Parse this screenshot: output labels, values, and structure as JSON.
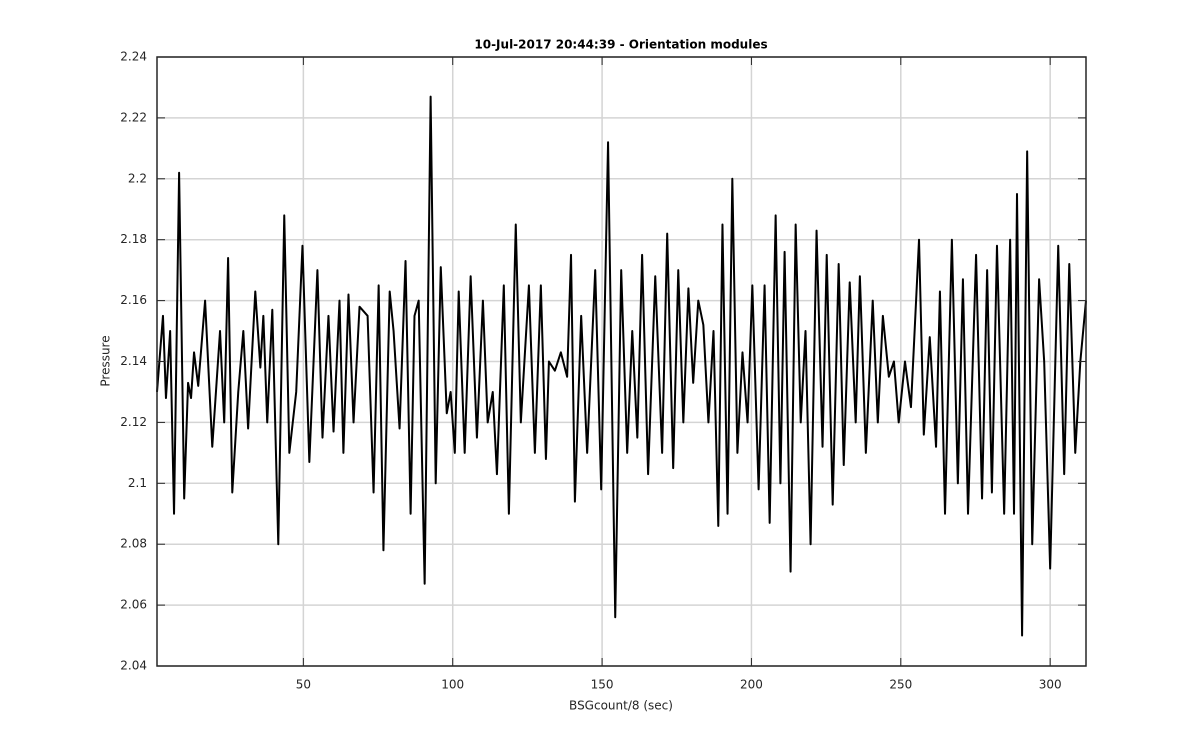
{
  "chart_data": {
    "type": "line",
    "title": "10-Jul-2017 20:44:39 - Orientation modules",
    "xlabel": "BSGcount/8 (sec)",
    "ylabel": "Pressure",
    "color": "#000000",
    "grid": true,
    "xlim": [
      1,
      312
    ],
    "xticks": [
      50,
      100,
      150,
      200,
      250,
      300
    ],
    "ylim": [
      2.04,
      2.24
    ],
    "yticks": [
      2.04,
      2.06,
      2.08,
      2.1,
      2.12,
      2.14,
      2.16,
      2.18,
      2.2,
      2.22,
      2.24
    ],
    "x": [
      1.0,
      3.0,
      4.0,
      5.4,
      6.7,
      8.4,
      10.1,
      11.4,
      12.4,
      13.4,
      14.8,
      17.1,
      19.5,
      22.1,
      23.5,
      24.8,
      26.2,
      28.2,
      29.9,
      31.5,
      33.9,
      35.6,
      36.6,
      37.9,
      39.6,
      41.6,
      43.6,
      45.3,
      47.6,
      49.7,
      52.0,
      54.7,
      56.4,
      58.4,
      60.1,
      62.1,
      63.4,
      65.1,
      66.8,
      68.8,
      71.5,
      73.5,
      75.2,
      76.8,
      78.9,
      80.2,
      82.2,
      84.2,
      85.9,
      87.2,
      88.6,
      90.6,
      92.6,
      94.3,
      96.0,
      98.0,
      99.3,
      100.7,
      102.0,
      104.0,
      106.0,
      108.1,
      110.1,
      111.7,
      113.4,
      114.8,
      117.1,
      118.8,
      121.1,
      122.8,
      125.5,
      127.5,
      129.5,
      131.2,
      132.2,
      134.2,
      136.2,
      138.3,
      139.6,
      140.9,
      143.0,
      145.0,
      147.7,
      149.7,
      152.0,
      154.4,
      156.4,
      158.4,
      160.1,
      161.8,
      163.4,
      165.4,
      167.8,
      170.1,
      171.8,
      173.8,
      175.5,
      177.2,
      178.9,
      180.5,
      182.2,
      183.9,
      185.6,
      187.3,
      188.9,
      190.3,
      192.0,
      193.6,
      195.3,
      197.0,
      198.7,
      200.3,
      202.4,
      204.4,
      206.1,
      208.1,
      209.7,
      211.1,
      213.1,
      214.8,
      216.5,
      218.1,
      219.8,
      221.8,
      223.8,
      225.2,
      227.2,
      229.2,
      230.9,
      232.9,
      234.9,
      236.3,
      238.3,
      240.6,
      242.3,
      244.0,
      246.0,
      247.7,
      249.3,
      251.4,
      253.4,
      256.1,
      257.7,
      259.7,
      261.8,
      263.1,
      264.8,
      267.1,
      269.1,
      270.8,
      272.5,
      275.2,
      277.2,
      278.9,
      280.5,
      282.2,
      284.6,
      286.6,
      287.9,
      288.9,
      290.6,
      292.3,
      294.0,
      296.3,
      298.0,
      300.0,
      302.7,
      304.7,
      306.4,
      308.4,
      310.1,
      312.0
    ],
    "values": [
      2.13,
      2.155,
      2.128,
      2.15,
      2.09,
      2.202,
      2.095,
      2.133,
      2.128,
      2.143,
      2.132,
      2.16,
      2.112,
      2.15,
      2.12,
      2.174,
      2.097,
      2.13,
      2.15,
      2.118,
      2.163,
      2.138,
      2.155,
      2.12,
      2.157,
      2.08,
      2.188,
      2.11,
      2.13,
      2.178,
      2.107,
      2.17,
      2.115,
      2.155,
      2.117,
      2.16,
      2.11,
      2.162,
      2.12,
      2.158,
      2.155,
      2.097,
      2.165,
      2.078,
      2.163,
      2.15,
      2.118,
      2.173,
      2.09,
      2.155,
      2.16,
      2.067,
      2.227,
      2.1,
      2.171,
      2.123,
      2.13,
      2.11,
      2.163,
      2.11,
      2.168,
      2.115,
      2.16,
      2.12,
      2.13,
      2.103,
      2.165,
      2.09,
      2.185,
      2.12,
      2.165,
      2.11,
      2.165,
      2.108,
      2.14,
      2.137,
      2.143,
      2.135,
      2.175,
      2.094,
      2.155,
      2.11,
      2.17,
      2.098,
      2.212,
      2.056,
      2.17,
      2.11,
      2.15,
      2.115,
      2.175,
      2.103,
      2.168,
      2.11,
      2.182,
      2.105,
      2.17,
      2.12,
      2.164,
      2.133,
      2.16,
      2.152,
      2.12,
      2.15,
      2.086,
      2.185,
      2.09,
      2.2,
      2.11,
      2.143,
      2.12,
      2.165,
      2.098,
      2.165,
      2.087,
      2.188,
      2.1,
      2.176,
      2.071,
      2.185,
      2.12,
      2.15,
      2.08,
      2.183,
      2.112,
      2.175,
      2.093,
      2.172,
      2.106,
      2.166,
      2.12,
      2.168,
      2.11,
      2.16,
      2.12,
      2.155,
      2.135,
      2.14,
      2.12,
      2.14,
      2.125,
      2.18,
      2.116,
      2.148,
      2.112,
      2.163,
      2.09,
      2.18,
      2.1,
      2.167,
      2.09,
      2.175,
      2.095,
      2.17,
      2.097,
      2.178,
      2.09,
      2.18,
      2.09,
      2.195,
      2.05,
      2.209,
      2.08,
      2.167,
      2.14,
      2.072,
      2.178,
      2.103,
      2.172,
      2.11,
      2.14,
      2.16
    ]
  }
}
